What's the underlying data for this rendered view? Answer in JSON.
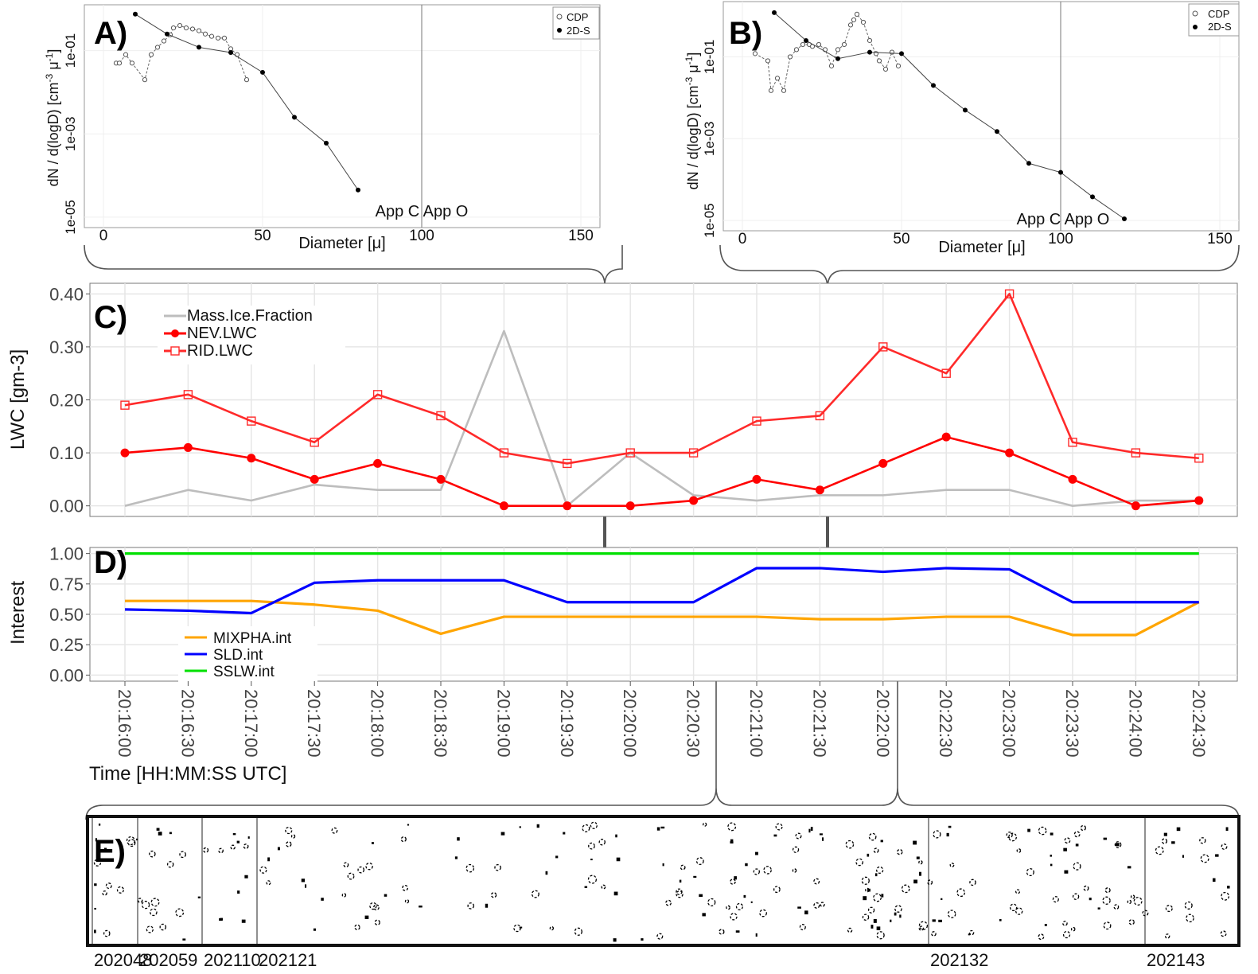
{
  "colors": {
    "mass_ice": "#bdbdbd",
    "nev": "#ff0000",
    "rid": "#ff2a2a",
    "mixpha": "#ffa500",
    "sld": "#0000ff",
    "sslw": "#00e000",
    "grid": "#e6e6e6",
    "frame": "#555555",
    "connector": "#555555"
  },
  "chart_data": [
    {
      "id": "A",
      "type": "scatter",
      "panel_label": "A)",
      "xlabel": "Diameter [μ]",
      "ylabel_main": "dN / d(logD) [cm",
      "ylabel_sup1": "-3",
      "ylabel_mid": " μ",
      "ylabel_sup2": "-1",
      "ylabel_end": "]",
      "x_ticks": [
        "0",
        "50",
        "100",
        "150"
      ],
      "x_tick_values": [
        0,
        50,
        100,
        150
      ],
      "y_ticks": [
        "1e-05",
        "1e-03",
        "1e-01"
      ],
      "y_tick_values": [
        1e-05,
        0.001,
        0.1
      ],
      "y_scale": "log",
      "xlim": [
        -6,
        156
      ],
      "ylim_log10": [
        -5.25,
        0.1
      ],
      "vline_x": 100,
      "annotation": "App C App O",
      "legend": [
        "CDP",
        "2D-S"
      ],
      "series": [
        {
          "name": "CDP",
          "style": "open",
          "x": [
            4,
            5,
            7,
            9,
            13,
            15,
            17,
            19,
            21,
            22,
            24,
            26,
            28,
            30,
            32,
            34,
            36,
            38,
            40,
            42,
            45
          ],
          "y": [
            0.05,
            0.05,
            0.08,
            0.05,
            0.02,
            0.08,
            0.12,
            0.17,
            0.24,
            0.35,
            0.4,
            0.35,
            0.33,
            0.3,
            0.25,
            0.22,
            0.2,
            0.2,
            0.11,
            0.08,
            0.02
          ]
        },
        {
          "name": "2D-S",
          "style": "filled",
          "x": [
            10,
            20,
            30,
            40,
            50,
            60,
            70,
            80
          ],
          "y": [
            0.75,
            0.25,
            0.12,
            0.09,
            0.03,
            0.0025,
            0.0006,
            4.5e-05
          ]
        }
      ]
    },
    {
      "id": "B",
      "type": "scatter",
      "panel_label": "B)",
      "xlabel": "Diameter [μ]",
      "ylabel_main": "dN / d(logD) [cm",
      "ylabel_sup1": "-3",
      "ylabel_mid": " μ",
      "ylabel_sup2": "-1",
      "ylabel_end": "]",
      "x_ticks": [
        "0",
        "50",
        "100",
        "150"
      ],
      "x_tick_values": [
        0,
        50,
        100,
        150
      ],
      "y_ticks": [
        "1e-05",
        "1e-03",
        "1e-01"
      ],
      "y_tick_values": [
        1e-05,
        0.001,
        0.1
      ],
      "y_scale": "log",
      "xlim": [
        -6,
        156
      ],
      "ylim_log10": [
        -5.25,
        0.35
      ],
      "vline_x": 100,
      "annotation": "App C App O",
      "legend": [
        "CDP",
        "2D-S"
      ],
      "series": [
        {
          "name": "CDP",
          "style": "open",
          "x": [
            4,
            8,
            9,
            11,
            13,
            15,
            17,
            19,
            21,
            22,
            24,
            26,
            28,
            30,
            32,
            34,
            35,
            36,
            38,
            40,
            42,
            43,
            45,
            47,
            49
          ],
          "y": [
            0.12,
            0.08,
            0.015,
            0.03,
            0.015,
            0.1,
            0.15,
            0.2,
            0.2,
            0.18,
            0.2,
            0.15,
            0.06,
            0.15,
            0.2,
            0.6,
            0.8,
            1.1,
            0.7,
            0.25,
            0.12,
            0.08,
            0.05,
            0.13,
            0.06
          ]
        },
        {
          "name": "2D-S",
          "style": "filled",
          "x": [
            10,
            20,
            30,
            40,
            50,
            60,
            70,
            80,
            90,
            100,
            110,
            120
          ],
          "y": [
            1.2,
            0.25,
            0.09,
            0.13,
            0.12,
            0.02,
            0.005,
            0.0015,
            0.00025,
            0.00015,
            3.8e-05,
            1.1e-05
          ]
        }
      ]
    },
    {
      "id": "C",
      "type": "line",
      "panel_label": "C)",
      "ylabel": "LWC [gm-3]",
      "y_ticks": [
        "0.00",
        "0.10",
        "0.20",
        "0.30",
        "0.40"
      ],
      "y_tick_values": [
        0,
        0.1,
        0.2,
        0.3,
        0.4
      ],
      "ylim": [
        -0.02,
        0.42
      ],
      "categories": [
        "20:16:00",
        "20:16:30",
        "20:17:00",
        "20:17:30",
        "20:18:00",
        "20:18:30",
        "20:19:00",
        "20:19:30",
        "20:20:00",
        "20:20:30",
        "20:21:00",
        "20:21:30",
        "20:22:00",
        "20:22:30",
        "20:23:00",
        "20:23:30",
        "20:24:00",
        "20:24:30"
      ],
      "series": [
        {
          "name": "Mass.Ice.Fraction",
          "color": "#bdbdbd",
          "marker": "none",
          "values": [
            0,
            0.03,
            0.01,
            0.04,
            0.03,
            0.03,
            0.33,
            0,
            0.1,
            0.02,
            0.01,
            0.02,
            0.02,
            0.03,
            0.03,
            0,
            0.01,
            0.01
          ]
        },
        {
          "name": "NEV.LWC",
          "color": "#ff0000",
          "marker": "filled-circle",
          "values": [
            0.1,
            0.11,
            0.09,
            0.05,
            0.08,
            0.05,
            0,
            0,
            0,
            0.01,
            0.05,
            0.03,
            0.08,
            0.13,
            0.1,
            0.05,
            0,
            0.01
          ]
        },
        {
          "name": "RID.LWC",
          "color": "#ff2a2a",
          "marker": "open-square",
          "values": [
            0.19,
            0.21,
            0.16,
            0.12,
            0.21,
            0.17,
            0.1,
            0.08,
            0.1,
            0.1,
            0.16,
            0.17,
            0.3,
            0.25,
            0.4,
            0.12,
            0.1,
            0.09
          ]
        }
      ]
    },
    {
      "id": "D",
      "type": "line",
      "panel_label": "D)",
      "ylabel": "Interest",
      "xlabel": "Time [HH:MM:SS UTC]",
      "y_ticks": [
        "0.00",
        "0.25",
        "0.50",
        "0.75",
        "1.00"
      ],
      "y_tick_values": [
        0,
        0.25,
        0.5,
        0.75,
        1.0
      ],
      "ylim": [
        -0.05,
        1.05
      ],
      "categories": [
        "20:16:00",
        "20:16:30",
        "20:17:00",
        "20:17:30",
        "20:18:00",
        "20:18:30",
        "20:19:00",
        "20:19:30",
        "20:20:00",
        "20:20:30",
        "20:21:00",
        "20:21:30",
        "20:22:00",
        "20:22:30",
        "20:23:00",
        "20:23:30",
        "20:24:00",
        "20:24:30"
      ],
      "series": [
        {
          "name": "MIXPHA.int",
          "color": "#ffa500",
          "values": [
            0.61,
            0.61,
            0.61,
            0.58,
            0.53,
            0.34,
            0.48,
            0.48,
            0.48,
            0.48,
            0.48,
            0.46,
            0.46,
            0.48,
            0.48,
            0.33,
            0.33,
            0.6
          ]
        },
        {
          "name": "SLD.int",
          "color": "#0000ff",
          "values": [
            0.54,
            0.53,
            0.51,
            0.76,
            0.78,
            0.78,
            0.78,
            0.6,
            0.6,
            0.6,
            0.88,
            0.88,
            0.85,
            0.88,
            0.87,
            0.6,
            0.6,
            0.6
          ]
        },
        {
          "name": "SSLW.int",
          "color": "#00e000",
          "values": [
            1,
            1,
            1,
            1,
            1,
            1,
            1,
            1,
            1,
            1,
            1,
            1,
            1,
            1,
            1,
            1,
            1,
            1
          ]
        }
      ]
    }
  ],
  "panel_e": {
    "label": "E)",
    "frame_ids": [
      "202048",
      "202059",
      "202110",
      "202121",
      "202132",
      "202143"
    ]
  }
}
